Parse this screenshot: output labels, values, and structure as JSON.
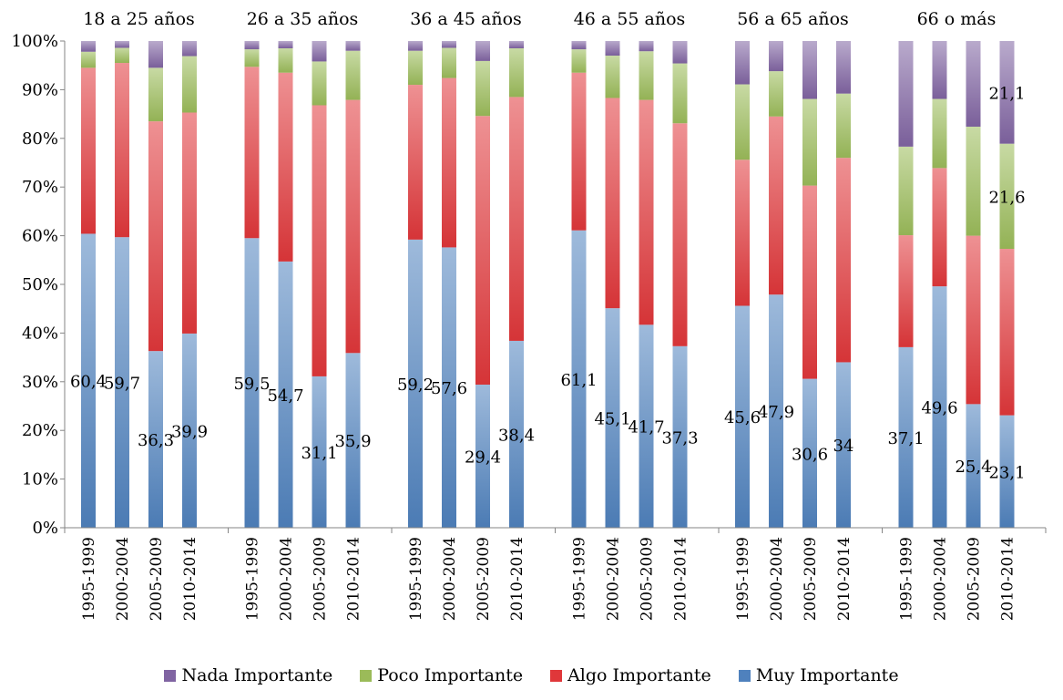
{
  "chart_data": {
    "type": "bar",
    "stacked": true,
    "percent": true,
    "groups": [
      "18 a 25 años",
      "26 a 35 años",
      "36 a 45 años",
      "46 a 55 años",
      "56 a 65 años",
      "66 o más"
    ],
    "categories": [
      "1995-1999",
      "2000-2004",
      "2005-2009",
      "2010-2014"
    ],
    "yticks": [
      "0%",
      "10%",
      "20%",
      "30%",
      "40%",
      "50%",
      "60%",
      "70%",
      "80%",
      "90%",
      "100%"
    ],
    "ylim": [
      0,
      100
    ],
    "grid": false,
    "legend_position": "bottom",
    "series": [
      {
        "name": "Muy Importante",
        "color": "#4f81bd",
        "values": [
          [
            60.4,
            59.7,
            36.3,
            39.9
          ],
          [
            59.5,
            54.7,
            31.1,
            35.9
          ],
          [
            59.2,
            57.6,
            29.4,
            38.4
          ],
          [
            61.1,
            45.1,
            41.7,
            37.3
          ],
          [
            45.6,
            47.9,
            30.6,
            34
          ],
          [
            37.1,
            49.6,
            25.4,
            23.1
          ]
        ]
      },
      {
        "name": "Algo Importante",
        "color": "#e0373a",
        "values": [
          [
            34.1,
            35.8,
            47.2,
            45.4
          ],
          [
            35.2,
            38.8,
            55.7,
            52
          ],
          [
            31.8,
            34.8,
            55.2,
            50.1
          ],
          [
            32.4,
            43.2,
            46.2,
            45.8
          ],
          [
            30,
            36.6,
            39.7,
            42
          ],
          [
            23,
            24.3,
            34.6,
            34.2
          ]
        ]
      },
      {
        "name": "Poco Importante",
        "color": "#9bbb59",
        "values": [
          [
            3.3,
            3.1,
            11,
            11.6
          ],
          [
            3.6,
            5,
            9,
            10.1
          ],
          [
            7,
            6.2,
            11.3,
            10
          ],
          [
            4.8,
            8.7,
            10,
            12.3
          ],
          [
            15.5,
            9.3,
            17.8,
            13.2
          ],
          [
            18.2,
            14.2,
            22.4,
            21.6
          ]
        ]
      },
      {
        "name": "Nada Importante",
        "color": "#8064a2",
        "values": [
          [
            2.2,
            1.4,
            5.5,
            3.1
          ],
          [
            1.7,
            1.5,
            4.2,
            2
          ],
          [
            2,
            1.4,
            4.1,
            1.5
          ],
          [
            1.7,
            3,
            2.1,
            4.6
          ],
          [
            8.9,
            6.2,
            11.9,
            10.8
          ],
          [
            21.7,
            11.9,
            17.6,
            21.1
          ]
        ]
      }
    ],
    "data_labels": {
      "Muy Importante": [
        [
          "60,4",
          "59,7",
          "36,3",
          "39,9"
        ],
        [
          "59,5",
          "54,7",
          "31,1",
          "35,9"
        ],
        [
          "59,2",
          "57,6",
          "29,4",
          "38,4"
        ],
        [
          "61,1",
          "45,1",
          "41,7",
          "37,3"
        ],
        [
          "45,6",
          "47,9",
          "30,6",
          "34"
        ],
        [
          "37,1",
          "49,6",
          "25,4",
          "23,1"
        ]
      ],
      "Poco Importante": [
        [
          null,
          null,
          null,
          null
        ],
        [
          null,
          null,
          null,
          null
        ],
        [
          null,
          null,
          null,
          null
        ],
        [
          null,
          null,
          null,
          null
        ],
        [
          null,
          null,
          null,
          null
        ],
        [
          null,
          null,
          null,
          "21,6"
        ]
      ],
      "Nada Importante": [
        [
          null,
          null,
          null,
          null
        ],
        [
          null,
          null,
          null,
          null
        ],
        [
          null,
          null,
          null,
          null
        ],
        [
          null,
          null,
          null,
          null
        ],
        [
          null,
          null,
          null,
          null
        ],
        [
          null,
          null,
          null,
          "21,1"
        ]
      ]
    }
  },
  "legend": [
    {
      "name": "Nada Importante",
      "color": "#8064a2"
    },
    {
      "name": "Poco Importante",
      "color": "#9bbb59"
    },
    {
      "name": "Algo Importante",
      "color": "#e0373a"
    },
    {
      "name": "Muy Importante",
      "color": "#4f81bd"
    }
  ]
}
